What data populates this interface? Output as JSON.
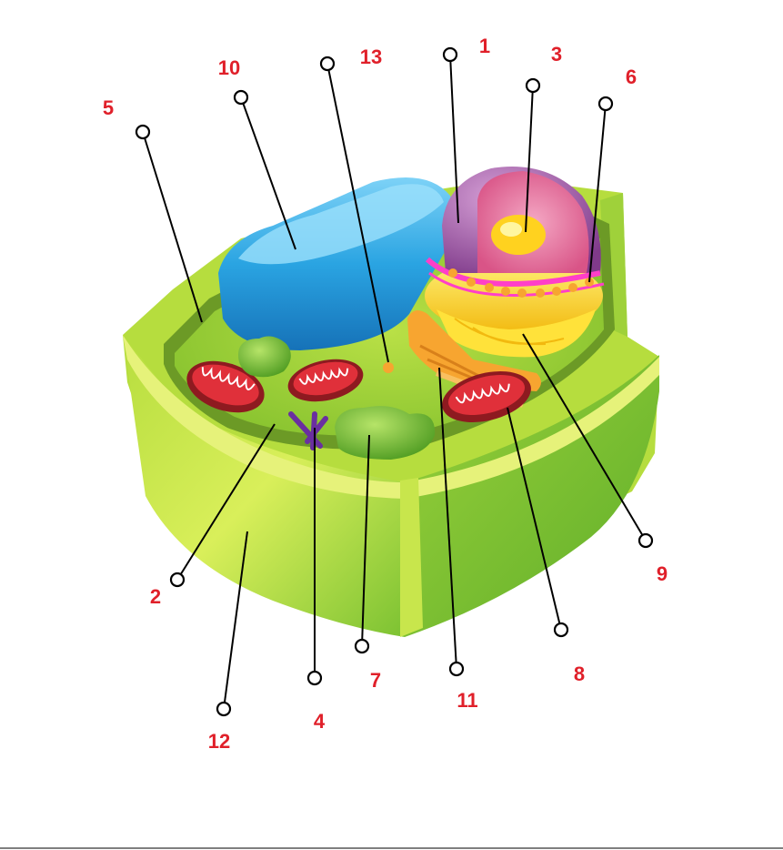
{
  "callouts": [
    {
      "id": "1",
      "label": "1"
    },
    {
      "id": "2",
      "label": "2"
    },
    {
      "id": "3",
      "label": "3"
    },
    {
      "id": "4",
      "label": "4"
    },
    {
      "id": "5",
      "label": "5"
    },
    {
      "id": "6",
      "label": "6"
    },
    {
      "id": "7",
      "label": "7"
    },
    {
      "id": "8",
      "label": "8"
    },
    {
      "id": "9",
      "label": "9"
    },
    {
      "id": "10",
      "label": "10"
    },
    {
      "id": "11",
      "label": "11"
    },
    {
      "id": "12",
      "label": "12"
    },
    {
      "id": "13",
      "label": "13"
    }
  ],
  "colors": {
    "label_text": "#e0202a",
    "wall_outer": "#8cc63f",
    "wall_light": "#d8ec6a",
    "cytoplasm": "#a6d83a",
    "vacuole": "#29a3e0",
    "nucleus_shell": "#9c4f9e",
    "nucleus_inner": "#e56b9a",
    "nucleolus": "#ffd21f",
    "er_yellow": "#ffe23a",
    "mitochondria": "#c0202a",
    "chloroplast": "#7fc832",
    "golgi": "#f7a530",
    "centrosome": "#6a2fa0"
  }
}
